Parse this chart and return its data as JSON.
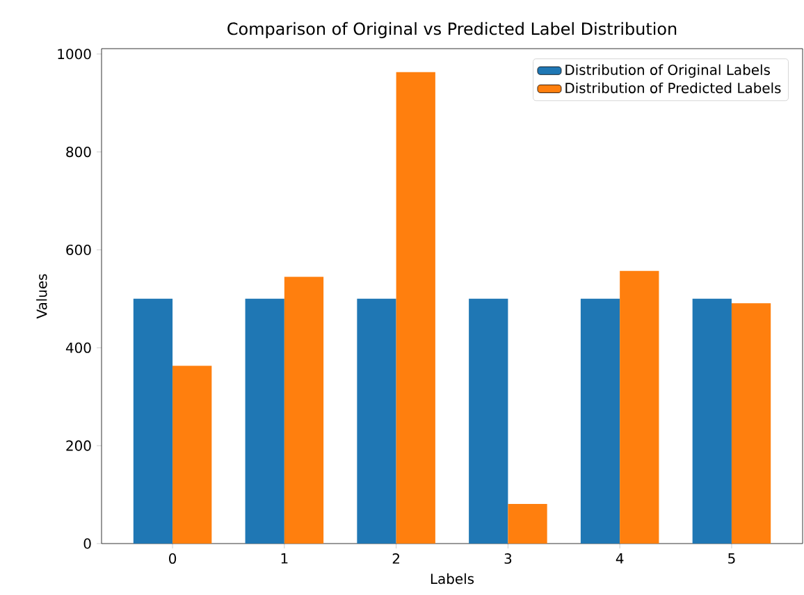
{
  "chart_data": {
    "type": "bar",
    "title": "Comparison of Original vs Predicted Label Distribution",
    "xlabel": "Labels",
    "ylabel": "Values",
    "categories": [
      "0",
      "1",
      "2",
      "3",
      "4",
      "5"
    ],
    "series": [
      {
        "name": "Distribution of Original Labels",
        "color": "#1f77b4",
        "values": [
          500,
          500,
          500,
          500,
          500,
          500
        ]
      },
      {
        "name": "Distribution of Predicted Labels",
        "color": "#ff7f0e",
        "values": [
          363,
          545,
          963,
          81,
          557,
          491
        ]
      }
    ],
    "ylim": [
      0,
      1011
    ],
    "yticks": [
      0,
      200,
      400,
      600,
      800,
      1000
    ],
    "legend": "top right",
    "grid": false
  }
}
